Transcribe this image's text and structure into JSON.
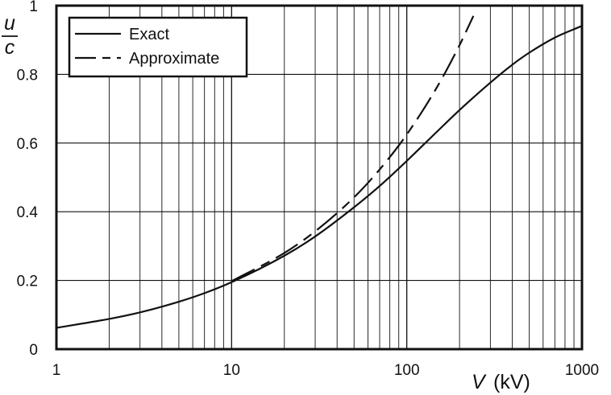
{
  "chart_data": {
    "type": "line",
    "x_scale": "log",
    "xlim": [
      1,
      1000
    ],
    "ylim": [
      0,
      1
    ],
    "x_ticks": [
      "1",
      "10",
      "100",
      "1000"
    ],
    "y_ticks": [
      "0",
      "0.2",
      "0.4",
      "0.6",
      "0.8",
      "1"
    ],
    "xlabel_var": "V",
    "xlabel_unit": "(kV)",
    "ylabel_num": "u",
    "ylabel_den": "c",
    "grid": true,
    "legend_position": "top-left",
    "series": [
      {
        "name": "Exact",
        "style": "solid",
        "x": [
          1,
          2,
          3,
          5,
          7,
          10,
          20,
          30,
          50,
          70,
          100,
          150,
          200,
          300,
          400,
          500,
          700,
          1000
        ],
        "y": [
          0.062,
          0.088,
          0.107,
          0.138,
          0.163,
          0.195,
          0.272,
          0.328,
          0.413,
          0.475,
          0.548,
          0.635,
          0.696,
          0.776,
          0.828,
          0.863,
          0.907,
          0.941
        ]
      },
      {
        "name": "Approximate",
        "style": "dashed",
        "x": [
          10,
          20,
          30,
          50,
          70,
          100,
          150,
          200,
          240
        ],
        "y": [
          0.198,
          0.28,
          0.343,
          0.442,
          0.523,
          0.625,
          0.766,
          0.885,
          0.97
        ]
      }
    ]
  },
  "colors": {
    "line": "#111111",
    "grid": "#111111"
  }
}
